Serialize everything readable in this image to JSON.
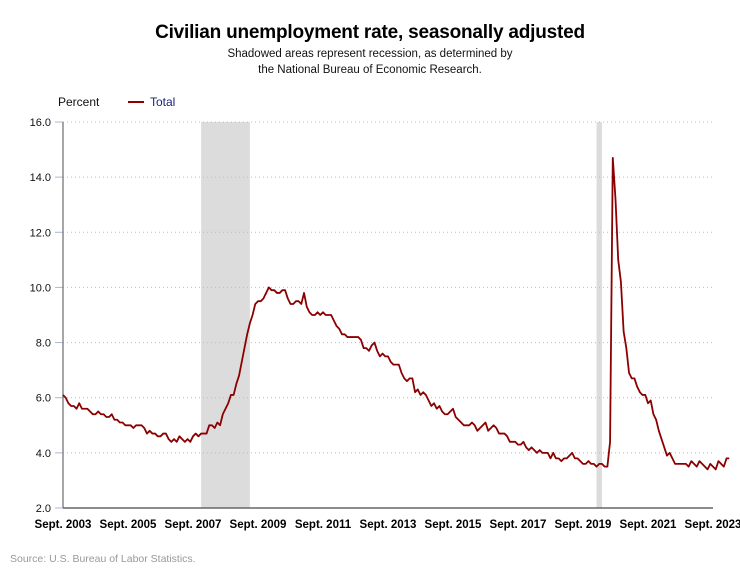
{
  "chart_data": {
    "type": "line",
    "title": "Civilian unemployment rate, seasonally adjusted",
    "subtitle_lines": [
      "Shadowed areas represent recession, as determined by",
      "the National Bureau of Economic Research."
    ],
    "ylabel": "Percent",
    "xlabel": "",
    "ylim": [
      2.0,
      16.0
    ],
    "y_ticks": [
      "2.0",
      "4.0",
      "6.0",
      "8.0",
      "10.0",
      "12.0",
      "14.0",
      "16.0"
    ],
    "x_ticks": [
      "Sept. 2003",
      "Sept. 2005",
      "Sept. 2007",
      "Sept. 2009",
      "Sept. 2011",
      "Sept. 2013",
      "Sept. 2015",
      "Sept. 2017",
      "Sept. 2019",
      "Sept. 2021",
      "Sept. 2023"
    ],
    "x_start": "Sept. 2003",
    "x_frequency": "monthly",
    "grid": true,
    "legend_placement": "top-left",
    "recessions": [
      {
        "start": "Dec. 2007",
        "end": "June 2009"
      },
      {
        "start": "Feb. 2020",
        "end": "Apr. 2020"
      }
    ],
    "series": [
      {
        "name": "Total",
        "color": "#8b0000",
        "values": [
          6.1,
          6.0,
          5.8,
          5.7,
          5.7,
          5.6,
          5.8,
          5.6,
          5.6,
          5.6,
          5.5,
          5.4,
          5.4,
          5.5,
          5.4,
          5.4,
          5.3,
          5.3,
          5.4,
          5.2,
          5.2,
          5.1,
          5.1,
          5.0,
          5.0,
          5.0,
          4.9,
          5.0,
          5.0,
          5.0,
          4.9,
          4.7,
          4.8,
          4.7,
          4.7,
          4.6,
          4.6,
          4.7,
          4.7,
          4.5,
          4.4,
          4.5,
          4.4,
          4.6,
          4.5,
          4.4,
          4.5,
          4.4,
          4.6,
          4.7,
          4.6,
          4.7,
          4.7,
          4.7,
          5.0,
          5.0,
          4.9,
          5.1,
          5.0,
          5.4,
          5.6,
          5.8,
          6.1,
          6.1,
          6.5,
          6.8,
          7.3,
          7.8,
          8.3,
          8.7,
          9.0,
          9.4,
          9.5,
          9.5,
          9.6,
          9.8,
          10.0,
          9.9,
          9.9,
          9.8,
          9.8,
          9.9,
          9.9,
          9.6,
          9.4,
          9.4,
          9.5,
          9.5,
          9.4,
          9.8,
          9.3,
          9.1,
          9.0,
          9.0,
          9.1,
          9.0,
          9.1,
          9.0,
          9.0,
          9.0,
          8.8,
          8.6,
          8.5,
          8.3,
          8.3,
          8.2,
          8.2,
          8.2,
          8.2,
          8.2,
          8.1,
          7.8,
          7.8,
          7.7,
          7.9,
          8.0,
          7.7,
          7.5,
          7.6,
          7.5,
          7.5,
          7.3,
          7.2,
          7.2,
          7.2,
          6.9,
          6.7,
          6.6,
          6.7,
          6.7,
          6.2,
          6.3,
          6.1,
          6.2,
          6.1,
          5.9,
          5.7,
          5.8,
          5.6,
          5.7,
          5.5,
          5.4,
          5.4,
          5.5,
          5.6,
          5.3,
          5.2,
          5.1,
          5.0,
          5.0,
          5.0,
          5.1,
          5.0,
          4.8,
          4.9,
          5.0,
          5.1,
          4.8,
          4.9,
          5.0,
          4.9,
          4.7,
          4.7,
          4.7,
          4.6,
          4.4,
          4.4,
          4.4,
          4.3,
          4.3,
          4.4,
          4.2,
          4.1,
          4.2,
          4.1,
          4.0,
          4.1,
          4.0,
          4.0,
          4.0,
          3.8,
          4.0,
          3.8,
          3.8,
          3.7,
          3.8,
          3.8,
          3.9,
          4.0,
          3.8,
          3.8,
          3.7,
          3.6,
          3.6,
          3.7,
          3.6,
          3.6,
          3.5,
          3.6,
          3.6,
          3.5,
          3.5,
          4.4,
          14.7,
          13.2,
          11.0,
          10.2,
          8.4,
          7.8,
          6.9,
          6.7,
          6.7,
          6.4,
          6.2,
          6.1,
          6.1,
          5.8,
          5.9,
          5.4,
          5.2,
          4.8,
          4.5,
          4.2,
          3.9,
          4.0,
          3.8,
          3.6,
          3.6,
          3.6,
          3.6,
          3.6,
          3.5,
          3.7,
          3.6,
          3.5,
          3.7,
          3.6,
          3.5,
          3.4,
          3.6,
          3.5,
          3.4,
          3.7,
          3.6,
          3.5,
          3.8,
          3.8
        ]
      }
    ]
  },
  "source": "Source: U.S. Bureau of Labor Statistics."
}
